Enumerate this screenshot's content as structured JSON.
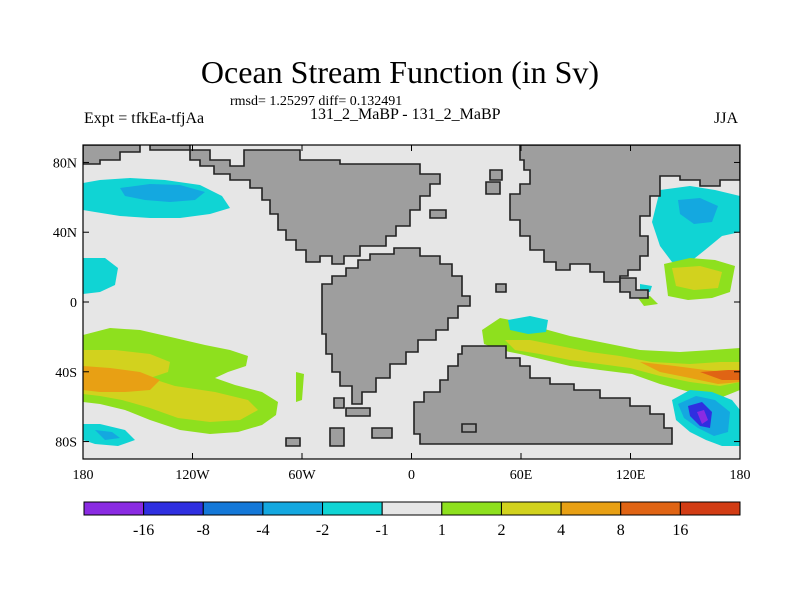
{
  "title": "Ocean Stream Function (in Sv)",
  "stats": "rmsd= 1.25297 diff= 0.132491",
  "experiment": "Expt = tfkEa-tfjAa",
  "run_label": "131_2_MaBP - 131_2_MaBP",
  "season": "JJA",
  "map": {
    "projection": "cylindrical equidistant",
    "lon_range": [
      -180,
      180
    ],
    "lat_range": [
      -90,
      90
    ],
    "lon_ticks": [
      {
        "value": -180,
        "label": "180"
      },
      {
        "value": -120,
        "label": "120W"
      },
      {
        "value": -60,
        "label": "60W"
      },
      {
        "value": 0,
        "label": "0"
      },
      {
        "value": 60,
        "label": "60E"
      },
      {
        "value": 120,
        "label": "120E"
      },
      {
        "value": 180,
        "label": "180"
      }
    ],
    "lat_ticks": [
      {
        "value": 80,
        "label": "80N"
      },
      {
        "value": 40,
        "label": "40N"
      },
      {
        "value": 0,
        "label": "0"
      },
      {
        "value": -40,
        "label": "40S"
      },
      {
        "value": -80,
        "label": "80S"
      }
    ],
    "land_color": "#9e9e9e",
    "ocean_color": "#e6e6e6"
  },
  "colorbar": {
    "labels": [
      "-16",
      "-8",
      "-4",
      "-2",
      "-1",
      "1",
      "2",
      "4",
      "8",
      "16"
    ],
    "colors": [
      "#8a2be2",
      "#2f2fe0",
      "#1478d8",
      "#14a8e0",
      "#10d4d4",
      "#e6e6e6",
      "#8ee01e",
      "#d2d21e",
      "#e8a014",
      "#e06414",
      "#d23c14"
    ]
  },
  "colors": {
    "neg1": "#10d4d4",
    "neg2": "#14a8e0",
    "neg4": "#1478d8",
    "neg8": "#2f2fe0",
    "neg16": "#8a2be2",
    "pos1": "#8ee01e",
    "pos2": "#d2d21e",
    "pos4": "#e8a014",
    "pos8": "#e06414"
  }
}
